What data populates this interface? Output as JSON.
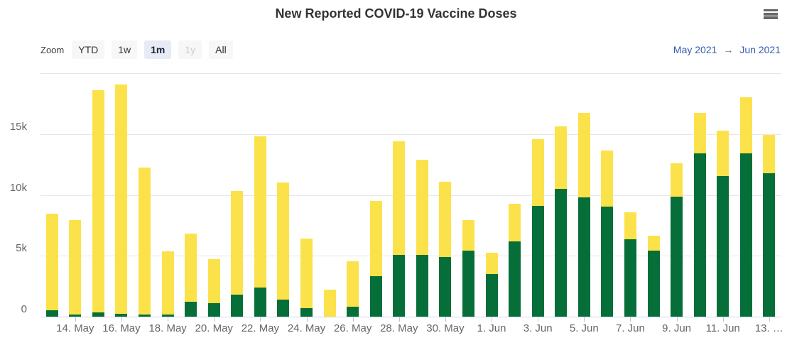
{
  "header": {
    "title": "New Reported COVID-19 Vaccine Doses",
    "menu_icon": "hamburger-menu"
  },
  "toolbar": {
    "zoom_label": "Zoom",
    "buttons": [
      {
        "label": "YTD",
        "state": "normal"
      },
      {
        "label": "1w",
        "state": "normal"
      },
      {
        "label": "1m",
        "state": "selected"
      },
      {
        "label": "1y",
        "state": "disabled"
      },
      {
        "label": "All",
        "state": "normal"
      }
    ]
  },
  "range": {
    "from": "May 2021",
    "arrow": "→",
    "to": "Jun 2021"
  },
  "colors": {
    "green": "#066e38",
    "yellow": "#fce24a",
    "range_blue": "#335cad",
    "grid": "#e7e7e7",
    "axis": "#ccd6eb",
    "axis_label": "#666666",
    "title": "#333333",
    "button_bg": "#f7f7f7",
    "button_selected_bg": "#e6ebf5",
    "button_disabled_text": "#cccccc"
  },
  "chart_data": {
    "type": "bar",
    "stacked": true,
    "title": "New Reported COVID-19 Vaccine Doses",
    "xlabel": "",
    "ylabel": "",
    "ylim": [
      0,
      20000
    ],
    "grid": true,
    "legend": false,
    "categories": [
      "13. May",
      "14. May",
      "15. May",
      "16. May",
      "17. May",
      "18. May",
      "19. May",
      "20. May",
      "21. May",
      "22. May",
      "23. May",
      "24. May",
      "25. May",
      "26. May",
      "27. May",
      "28. May",
      "29. May",
      "30. May",
      "31. May",
      "1. Jun",
      "2. Jun",
      "3. Jun",
      "4. Jun",
      "5. Jun",
      "6. Jun",
      "7. Jun",
      "8. Jun",
      "9. Jun",
      "10. Jun",
      "11. Jun",
      "12. Jun",
      "13. Jun"
    ],
    "series": [
      {
        "name": "green",
        "color": "#066e38",
        "values": [
          500,
          200,
          350,
          250,
          200,
          150,
          1200,
          1100,
          1800,
          2400,
          1400,
          700,
          0,
          800,
          3300,
          5100,
          5100,
          4900,
          5400,
          3500,
          6200,
          9100,
          10500,
          9800,
          9050,
          6350,
          5400,
          9850,
          13400,
          11550,
          13400,
          11800
        ]
      },
      {
        "name": "yellow",
        "color": "#fce24a",
        "values": [
          7950,
          7750,
          18250,
          18800,
          12050,
          5200,
          5650,
          3600,
          8500,
          12400,
          9600,
          5700,
          2200,
          3750,
          6200,
          9300,
          7800,
          6200,
          2550,
          1750,
          3100,
          5500,
          5150,
          6950,
          4600,
          2200,
          1250,
          2750,
          3350,
          3750,
          4600,
          3100
        ]
      }
    ],
    "y_ticks": [
      {
        "label": "0",
        "value": 0
      },
      {
        "label": "5k",
        "value": 5000
      },
      {
        "label": "10k",
        "value": 10000
      },
      {
        "label": "15k",
        "value": 15000
      }
    ],
    "gridline_values": [
      5000,
      10000,
      15000,
      20000
    ],
    "x_ticks": [
      {
        "index": 1,
        "label": "14. May"
      },
      {
        "index": 3,
        "label": "16. May"
      },
      {
        "index": 5,
        "label": "18. May"
      },
      {
        "index": 7,
        "label": "20. May"
      },
      {
        "index": 9,
        "label": "22. May"
      },
      {
        "index": 11,
        "label": "24. May"
      },
      {
        "index": 13,
        "label": "26. May"
      },
      {
        "index": 15,
        "label": "28. May"
      },
      {
        "index": 17,
        "label": "30. May"
      },
      {
        "index": 19,
        "label": "1. Jun"
      },
      {
        "index": 21,
        "label": "3. Jun"
      },
      {
        "index": 23,
        "label": "5. Jun"
      },
      {
        "index": 25,
        "label": "7. Jun"
      },
      {
        "index": 27,
        "label": "9. Jun"
      },
      {
        "index": 29,
        "label": "11. Jun"
      },
      {
        "index": 31,
        "label": "13. …"
      }
    ]
  }
}
